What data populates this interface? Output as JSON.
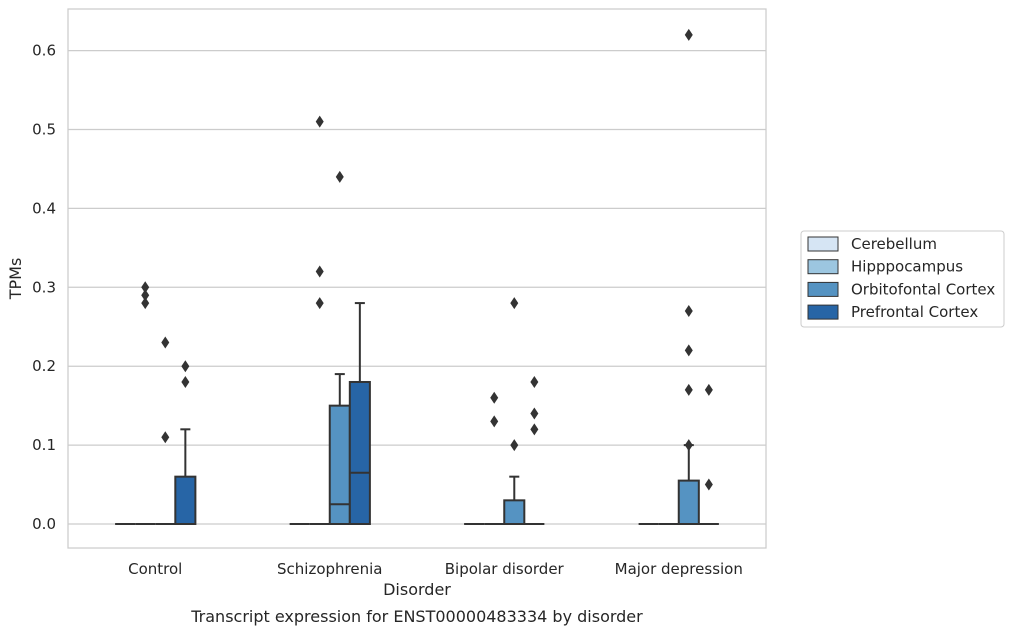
{
  "chart_data": {
    "type": "boxplot",
    "caption": "Transcript expression for ENST00000483334 by disorder",
    "xlabel": "Disorder",
    "ylabel": "TPMs",
    "ylim": [
      -0.03,
      0.653
    ],
    "yticks": [
      0.0,
      0.1,
      0.2,
      0.3,
      0.4,
      0.5,
      0.6
    ],
    "ytick_labels": [
      "0.0",
      "0.1",
      "0.2",
      "0.3",
      "0.4",
      "0.5",
      "0.6"
    ],
    "grid": "horizontal",
    "legend_position": "right",
    "categories": [
      "Control",
      "Schizophrenia",
      "Bipolar disorder",
      "Major depression"
    ],
    "series": [
      {
        "name": "Cerebellum",
        "color": "#d6e5f4",
        "boxes": [
          {
            "q1": 0,
            "median": 0,
            "q3": 0,
            "whislo": 0,
            "whishi": 0,
            "fliers": []
          },
          {
            "q1": 0,
            "median": 0,
            "q3": 0,
            "whislo": 0,
            "whishi": 0,
            "fliers": []
          },
          {
            "q1": 0,
            "median": 0,
            "q3": 0,
            "whislo": 0,
            "whishi": 0,
            "fliers": []
          },
          {
            "q1": 0,
            "median": 0,
            "q3": 0,
            "whislo": 0,
            "whishi": 0,
            "fliers": []
          }
        ]
      },
      {
        "name": "Hipppocampus",
        "color": "#9cc6e0",
        "boxes": [
          {
            "q1": 0,
            "median": 0,
            "q3": 0,
            "whislo": 0,
            "whishi": 0,
            "fliers": [
              0.29,
              0.3,
              0.28
            ]
          },
          {
            "q1": 0,
            "median": 0,
            "q3": 0,
            "whislo": 0,
            "whishi": 0,
            "fliers": [
              0.51,
              0.32,
              0.28
            ]
          },
          {
            "q1": 0,
            "median": 0,
            "q3": 0,
            "whislo": 0,
            "whishi": 0,
            "fliers": [
              0.16,
              0.13
            ]
          },
          {
            "q1": 0,
            "median": 0,
            "q3": 0,
            "whislo": 0,
            "whishi": 0,
            "fliers": []
          }
        ]
      },
      {
        "name": "Orbitofontal Cortex",
        "color": "#5593c2",
        "boxes": [
          {
            "q1": 0,
            "median": 0,
            "q3": 0,
            "whislo": 0,
            "whishi": 0,
            "fliers": [
              0.23,
              0.11
            ]
          },
          {
            "q1": 0,
            "median": 0.025,
            "q3": 0.15,
            "whislo": 0,
            "whishi": 0.19,
            "fliers": [
              0.44
            ]
          },
          {
            "q1": 0,
            "median": 0,
            "q3": 0.03,
            "whislo": 0,
            "whishi": 0.06,
            "fliers": [
              0.28,
              0.1
            ]
          },
          {
            "q1": 0,
            "median": 0,
            "q3": 0.055,
            "whislo": 0,
            "whishi": 0.1,
            "fliers": [
              0.62,
              0.27,
              0.22,
              0.17,
              0.1
            ]
          }
        ]
      },
      {
        "name": "Prefrontal Cortex",
        "color": "#2765a6",
        "boxes": [
          {
            "q1": 0,
            "median": 0,
            "q3": 0.06,
            "whislo": 0,
            "whishi": 0.12,
            "fliers": [
              0.2,
              0.18
            ]
          },
          {
            "q1": 0,
            "median": 0.065,
            "q3": 0.18,
            "whislo": 0,
            "whishi": 0.28,
            "fliers": []
          },
          {
            "q1": 0,
            "median": 0,
            "q3": 0,
            "whislo": 0,
            "whishi": 0,
            "fliers": [
              0.18,
              0.14,
              0.12
            ]
          },
          {
            "q1": 0,
            "median": 0,
            "q3": 0,
            "whislo": 0,
            "whishi": 0,
            "fliers": [
              0.17,
              0.05
            ]
          }
        ]
      }
    ]
  }
}
